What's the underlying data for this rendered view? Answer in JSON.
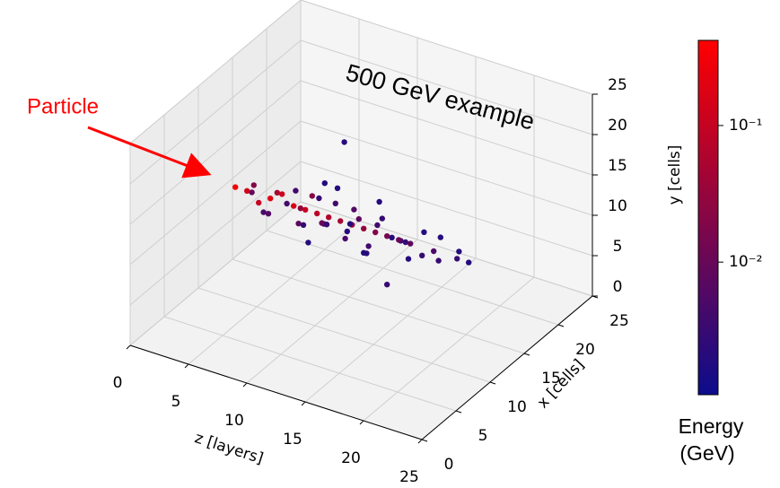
{
  "chart_data": {
    "type": "scatter3d",
    "title": "500 GeV example",
    "annotation": "Particle",
    "xlabel": "z [layers]",
    "ylabel": "x [cells]",
    "zlabel": "y [cells]",
    "xlim": [
      0,
      25
    ],
    "xticks": [
      0,
      5,
      10,
      15,
      20,
      25
    ],
    "ylim": [
      0,
      25
    ],
    "yticks": [
      0,
      5,
      10,
      15,
      20,
      25
    ],
    "zlim": [
      0,
      25
    ],
    "zticks": [
      0,
      5,
      10,
      15,
      20,
      25
    ],
    "grid": true,
    "colorbar": {
      "label": [
        "Energy",
        "(GeV)"
      ],
      "scale": "log",
      "clim": [
        0.00107,
        0.42
      ],
      "ticks": [
        {
          "value": 0.1,
          "label": "10⁻¹"
        },
        {
          "value": 0.01,
          "label": "10⁻²"
        }
      ],
      "cmap": [
        "#0c0c8c",
        "#ff0000"
      ]
    },
    "points": {
      "x": [
        2,
        3,
        3,
        4,
        4,
        5,
        5,
        5,
        6,
        6,
        6,
        7,
        7,
        7,
        8,
        8,
        8,
        8,
        9,
        9,
        9,
        9,
        10,
        10,
        10,
        10,
        11,
        11,
        11,
        11,
        12,
        12,
        12,
        12,
        13,
        13,
        13,
        13,
        14,
        14,
        14,
        15,
        15,
        15,
        16,
        16,
        16,
        17,
        17,
        18,
        18,
        19,
        19,
        20,
        20,
        21,
        22,
        12,
        9,
        15
      ],
      "y": [
        12,
        12,
        13,
        12,
        11,
        12,
        13,
        11,
        12,
        14,
        10,
        12,
        13,
        11,
        12,
        13,
        11,
        14,
        12,
        10,
        13,
        15,
        12,
        11,
        13,
        9,
        12,
        14,
        10,
        13,
        12,
        11,
        13,
        16,
        12,
        10,
        14,
        12,
        12,
        13,
        11,
        12,
        9,
        14,
        12,
        13,
        11,
        12,
        14,
        12,
        10,
        12,
        13,
        11,
        14,
        12,
        12,
        8,
        16,
        12
      ],
      "z": [
        12,
        12,
        12,
        11,
        13,
        12,
        12,
        11,
        13,
        12,
        12,
        12,
        11,
        13,
        12,
        13,
        11,
        12,
        12,
        12,
        10,
        13,
        12,
        12,
        13,
        11,
        12,
        12,
        13,
        10,
        12,
        11,
        12,
        12,
        12,
        14,
        11,
        9,
        12,
        13,
        11,
        12,
        12,
        10,
        12,
        11,
        13,
        12,
        12,
        11,
        12,
        12,
        13,
        12,
        11,
        12,
        12,
        20,
        18,
        6
      ],
      "energy": [
        0.3,
        0.15,
        0.02,
        0.1,
        0.01,
        0.2,
        0.05,
        0.005,
        0.12,
        0.004,
        0.006,
        0.15,
        0.03,
        0.004,
        0.1,
        0.02,
        0.008,
        0.003,
        0.08,
        0.003,
        0.005,
        0.002,
        0.06,
        0.01,
        0.004,
        0.002,
        0.05,
        0.006,
        0.003,
        0.002,
        0.04,
        0.005,
        0.008,
        0.002,
        0.03,
        0.002,
        0.004,
        0.002,
        0.02,
        0.003,
        0.004,
        0.015,
        0.002,
        0.003,
        0.01,
        0.003,
        0.002,
        0.008,
        0.002,
        0.003,
        0.002,
        0.005,
        0.002,
        0.003,
        0.002,
        0.003,
        0.002,
        0.002,
        0.002,
        0.003
      ]
    }
  }
}
